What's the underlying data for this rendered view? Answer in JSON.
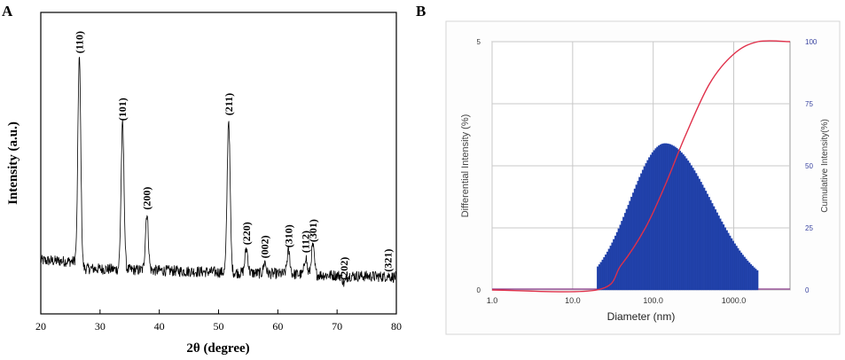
{
  "colors": {
    "xrd_line": "#000000",
    "dls_bar": "#1f3fa6",
    "dls_bar_edge": "#2a4bb8",
    "cumulative_line": "#e0304a",
    "baseline_line": "#8a3a8a",
    "grid": "#c8c8c8",
    "right_axis_text": "#3a44a0"
  },
  "chart_data": [
    {
      "panel_label": "A",
      "type": "line",
      "xlabel": "2θ (degree)",
      "ylabel": "Intensity (a.u.)",
      "xlim": [
        20,
        80
      ],
      "ylim": [
        0,
        100
      ],
      "xticks": [
        20,
        30,
        40,
        50,
        60,
        70,
        80
      ],
      "y_tick_labels_shown": false,
      "grid": false,
      "background_level": 14,
      "peaks": [
        {
          "label": "(110)",
          "x": 26.5,
          "y": 92,
          "width": 0.35
        },
        {
          "label": "(101)",
          "x": 33.8,
          "y": 67,
          "width": 0.35
        },
        {
          "label": "(200)",
          "x": 37.9,
          "y": 34,
          "width": 0.35
        },
        {
          "label": "(211)",
          "x": 51.7,
          "y": 69,
          "width": 0.35
        },
        {
          "label": "(220)",
          "x": 54.7,
          "y": 21,
          "width": 0.35
        },
        {
          "label": "(002)",
          "x": 57.8,
          "y": 16,
          "width": 0.3
        },
        {
          "label": "(310)",
          "x": 61.8,
          "y": 20,
          "width": 0.35
        },
        {
          "label": "(112)",
          "x": 64.7,
          "y": 18,
          "width": 0.3
        },
        {
          "label": "(301)",
          "x": 65.9,
          "y": 22,
          "width": 0.35
        },
        {
          "label": "(202)",
          "x": 71.2,
          "y": 8,
          "width": 0.35
        },
        {
          "label": "(321)",
          "x": 78.6,
          "y": 11,
          "width": 0.35
        }
      ]
    },
    {
      "panel_label": "B",
      "type": "bar",
      "xlabel": "Diameter (nm)",
      "ylabel_left": "Differential Intensity (%)",
      "ylabel_right": "Cumulative Intensity(%)",
      "x_scale": "log",
      "xlim": [
        1,
        5000
      ],
      "xticks": [
        {
          "value": 1,
          "label": "1.0"
        },
        {
          "value": 10,
          "label": "10.0"
        },
        {
          "value": 100,
          "label": "100.0"
        },
        {
          "value": 1000,
          "label": "1000.0"
        }
      ],
      "ylim_left": [
        0,
        5
      ],
      "yticks_left": [
        {
          "value": 0,
          "label": "0"
        },
        {
          "value": 5,
          "label": "5"
        }
      ],
      "ylim_right": [
        0,
        100
      ],
      "yticks_right": [
        {
          "value": 0,
          "label": "0"
        },
        {
          "value": 25,
          "label": "25"
        },
        {
          "value": 50,
          "label": "50"
        },
        {
          "value": 75,
          "label": "75"
        },
        {
          "value": 100,
          "label": "100"
        }
      ],
      "grid": true,
      "distribution": {
        "peak_diameter_nm": 140,
        "peak_value": 2.95,
        "lower_edge_nm": 20,
        "upper_edge_nm": 2000,
        "lower_edge_value": 0.45,
        "upper_edge_value": 0.38,
        "bins": 100
      },
      "cumulative": {
        "x": [
          1,
          20,
          40,
          80,
          140,
          250,
          500,
          1000,
          2000,
          5000
        ],
        "y": [
          0,
          0,
          10,
          25,
          42,
          62,
          83,
          95,
          100,
          100
        ]
      }
    }
  ]
}
